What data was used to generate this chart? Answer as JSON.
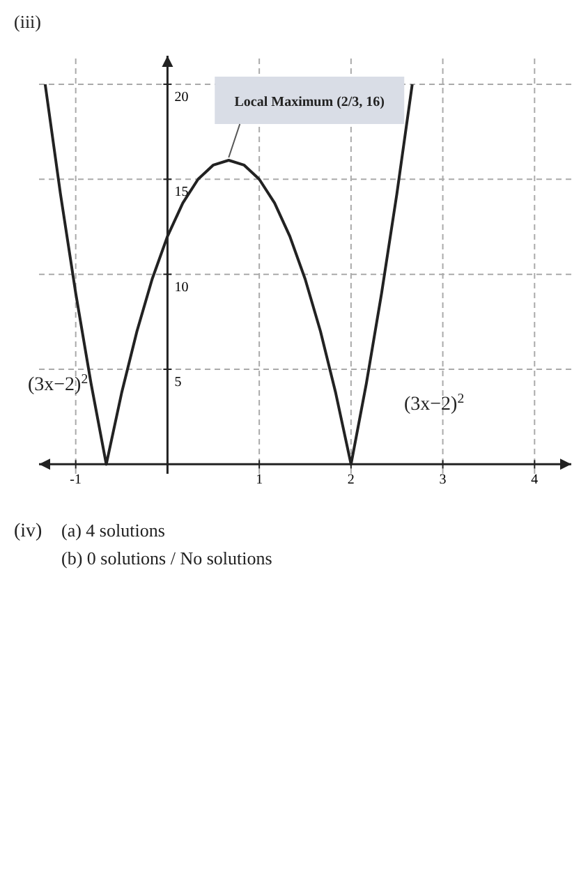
{
  "chart_data": {
    "type": "line",
    "title": "(iii)",
    "x": [
      -1.333,
      -1.167,
      -1,
      -0.833,
      -0.667,
      -0.5,
      -0.333,
      -0.167,
      0,
      0.167,
      0.333,
      0.5,
      0.667,
      0.833,
      1,
      1.167,
      1.333,
      1.5,
      1.667,
      1.833,
      2,
      2.167,
      2.333,
      2.5,
      2.667
    ],
    "series": [
      {
        "color": "#222222",
        "values": [
          20,
          14.25,
          9,
          4.25,
          0,
          3.75,
          7,
          9.75,
          12,
          13.75,
          15,
          15.75,
          16,
          15.75,
          15,
          13.75,
          12,
          9.75,
          7,
          3.75,
          0,
          4.25,
          9,
          14.25,
          20
        ]
      }
    ],
    "xlim": [
      -1.4,
      4.4
    ],
    "ylim": [
      -0.5,
      21.5
    ],
    "xticks": [
      -1,
      1,
      2,
      3,
      4
    ],
    "yticks": [
      5,
      10,
      15,
      20
    ],
    "grid": true,
    "marker": "none",
    "line_style": "solid",
    "annotations": [
      {
        "text": "Local Maximum (2/3, 16)",
        "x": 0.667,
        "y": 16
      },
      "(3x−2)$^{2}$",
      "(3x−2)$^{2}$",
      "(iv)",
      "(a)   4 solutions",
      "(b)   0 solutions / No solutions"
    ]
  }
}
